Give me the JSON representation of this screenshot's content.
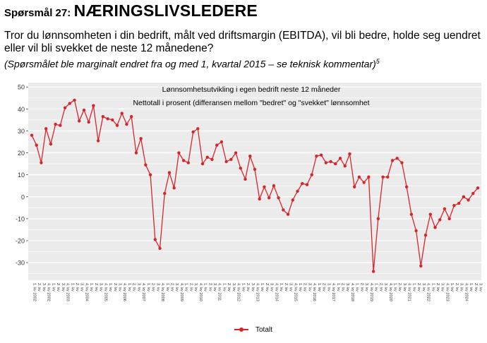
{
  "header": {
    "prefix": "Spørsmål 27:",
    "title": "NÆRINGSLIVSLEDERE",
    "question": "Tror du lønnsomheten i din bedrift, målt ved driftsmargin (EBITDA), vil bli bedre, holde seg uendret eller vil bli svekket de neste 12 månedene?",
    "note": "(Spørsmålet ble marginalt endret fra og med 1, kvartal 2015 – se teknisk kommentar)",
    "note_ref": "5"
  },
  "colors": {
    "series": "#d7262b",
    "panel": "#ebebeb",
    "grid": "#ffffff"
  },
  "chart_data": {
    "type": "line",
    "title": "Lønnsomhetsutvikling i egen bedrift neste 12 måneder",
    "subtitle": "Nettotall i prosent (differansen mellom \"bedret\" og \"svekket\" lønnsomhet",
    "xlabel": "",
    "ylabel": "",
    "ylim": [
      -38,
      52
    ],
    "yticks": [
      50,
      40,
      30,
      20,
      10,
      0,
      -10,
      -20,
      -30
    ],
    "grid": true,
    "legend_position": "bottom",
    "x_start": "1. kv 2002",
    "x_end": "4. kv 2025",
    "x_tick_labels": [
      "1. kv 2002",
      "4. kv 2002",
      "4. kv 2003",
      "4. kv 2004",
      "4. kv 2005",
      "4. kv 2006",
      "4. kv 2007",
      "4. kv 2008",
      "4. kv 2009",
      "4. kv 2010",
      "4. kv 2011",
      "4. kv 2012",
      "4. kv 2013",
      "4. kv 2014",
      "4. kv 2015",
      "4. kv 2016",
      "4. kv 2017",
      "4. kv 2018",
      "4. kv 2019",
      "4. kv 2020",
      "4. kv 2021",
      "4. kv 2022",
      "4. kv 2023",
      "4. kv 2024",
      "4. kv 2025"
    ],
    "series": [
      {
        "name": "Totalt",
        "values": [
          28,
          23.5,
          15.5,
          31,
          24,
          33,
          32.5,
          40.5,
          42.5,
          44,
          34.5,
          39.5,
          34,
          41.5,
          25.5,
          36.5,
          35.5,
          35,
          32.5,
          38,
          33,
          36.5,
          20,
          26.5,
          14.5,
          10,
          -19.5,
          -23.5,
          1.5,
          11,
          4,
          20,
          16.5,
          15.5,
          29.5,
          31,
          15,
          18,
          17,
          23.5,
          25,
          16,
          17,
          20,
          13,
          8,
          18.5,
          12.5,
          -1,
          4.5,
          -0.5,
          5,
          -0.5,
          -6,
          -8,
          -1.5,
          2.5,
          6,
          5.5,
          10,
          18.5,
          19,
          15.5,
          16,
          15,
          17.5,
          14,
          19.5,
          4.5,
          9,
          6.5,
          9,
          -34,
          -10,
          9,
          9,
          16.5,
          17.5,
          15.5,
          4.5,
          -8,
          -15.5,
          -31.5,
          -17.5,
          -8,
          -14,
          -10.5,
          -5.5,
          -10,
          -4,
          -3,
          0,
          -1.5,
          1.5,
          4
        ]
      }
    ]
  }
}
